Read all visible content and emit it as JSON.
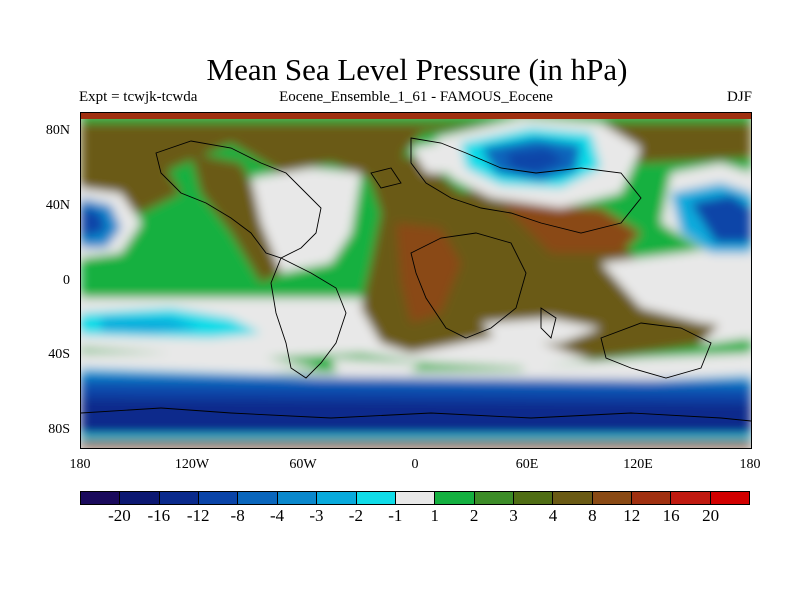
{
  "title": "Mean Sea Level Pressure (in hPa)",
  "subtitle_left": "Expt = tcwjk-tcwda",
  "subtitle_center": "Eocene_Ensemble_1_61 - FAMOUS_Eocene",
  "subtitle_right": "DJF",
  "lat_labels": [
    "80N",
    "40N",
    "0",
    "40S",
    "80S"
  ],
  "lon_labels": [
    "180",
    "120W",
    "60W",
    "0",
    "60E",
    "120E",
    "180"
  ],
  "colorbar": {
    "colors": [
      "#1a0a5c",
      "#0c1872",
      "#0a2a8c",
      "#0a44a8",
      "#0a66bc",
      "#0a88cc",
      "#08aadc",
      "#10dce8",
      "#e8e8e8",
      "#14b040",
      "#3c8c28",
      "#4f6d14",
      "#6a5a14",
      "#8a4a14",
      "#a03010",
      "#c01a10",
      "#d20000"
    ],
    "labels": [
      "-20",
      "-16",
      "-12",
      "-8",
      "-4",
      "-3",
      "-2",
      "-1",
      "1",
      "2",
      "3",
      "4",
      "8",
      "12",
      "16",
      "20"
    ]
  }
}
